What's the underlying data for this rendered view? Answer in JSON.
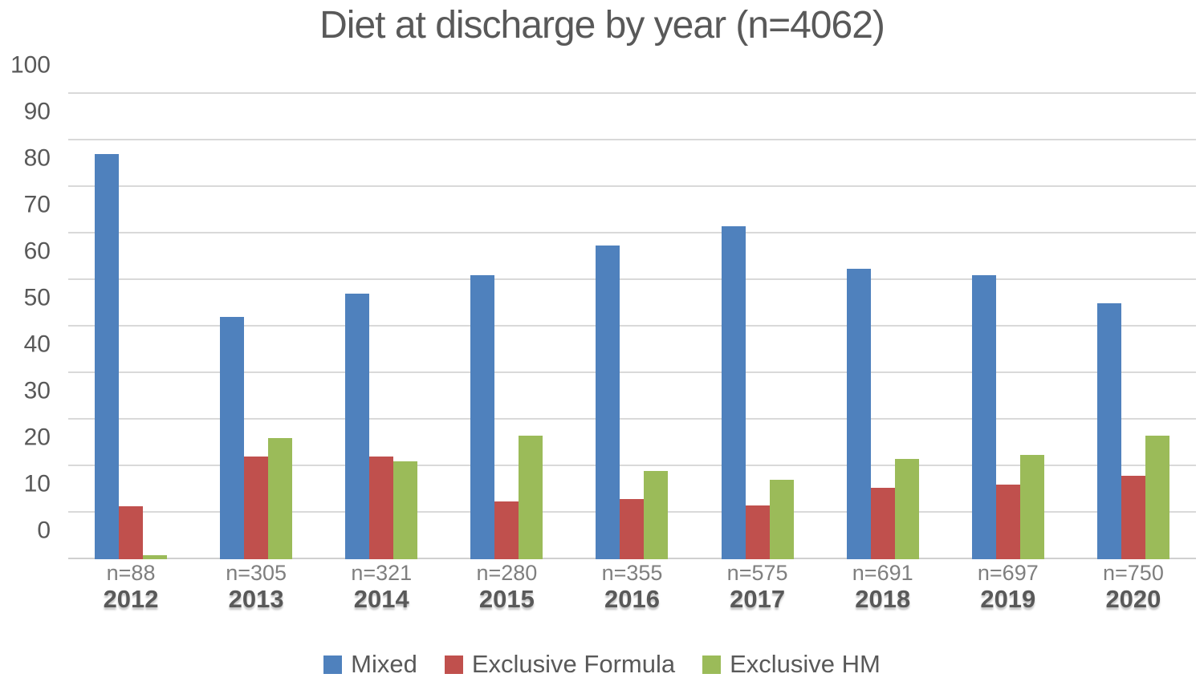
{
  "chart_data": {
    "type": "bar",
    "title": "Diet at discharge by year (n=4062)",
    "xlabel": "",
    "ylabel": "",
    "ylim": [
      0,
      100
    ],
    "ytick_step": 10,
    "grid": true,
    "legend_position": "bottom",
    "categories": [
      "2012",
      "2013",
      "2014",
      "2015",
      "2016",
      "2017",
      "2018",
      "2019",
      "2020"
    ],
    "n_labels": [
      "n=88",
      "n=305",
      "n=321",
      "n=280",
      "n=355",
      "n=575",
      "n=691",
      "n=697",
      "n=750"
    ],
    "series": [
      {
        "name": "Mixed",
        "color": "#4F81BD",
        "values": [
          87,
          52,
          57,
          61,
          67.5,
          71.5,
          62.5,
          61,
          55
        ]
      },
      {
        "name": "Exclusive Formula",
        "color": "#C0504D",
        "values": [
          11.4,
          22,
          22,
          12.5,
          13,
          11.5,
          15.3,
          16,
          18
        ]
      },
      {
        "name": "Exclusive HM",
        "color": "#9BBB59",
        "values": [
          0.8,
          26,
          21,
          26.5,
          19,
          17,
          21.5,
          22.5,
          26.5
        ]
      }
    ]
  },
  "colors": {
    "text": "#595959",
    "n_label_text": "#7F7F7F",
    "gridline": "#D9D9D9"
  }
}
